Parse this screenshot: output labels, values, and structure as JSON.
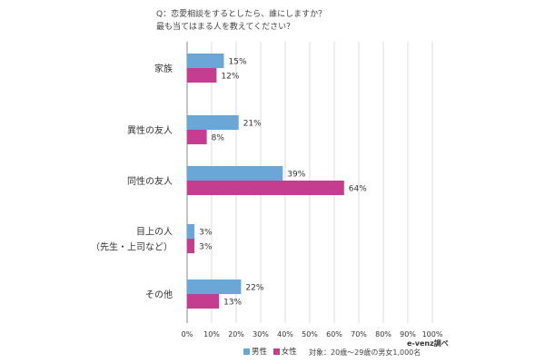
{
  "question": {
    "line1": "Q：恋愛相談をするとしたら、誰にしますか？",
    "line2": "最も当てはまる人を教えてください？"
  },
  "colors": {
    "male": "#6aa7d6",
    "female": "#c53d8e",
    "grid": "#dddddd",
    "axis": "#888888"
  },
  "chart_data": {
    "type": "bar",
    "orientation": "horizontal",
    "categories": [
      "家族",
      "異性の友人",
      "同性の友人",
      "目上の人\n（先生・上司など）",
      "その他"
    ],
    "series": [
      {
        "name": "男性",
        "values": [
          15,
          21,
          39,
          3,
          22
        ]
      },
      {
        "name": "女性",
        "values": [
          12,
          8,
          64,
          3,
          13
        ]
      }
    ],
    "value_labels": {
      "男性": [
        "15%",
        "21%",
        "39%",
        "3%",
        "22%"
      ],
      "女性": [
        "12%",
        "8%",
        "64%",
        "3%",
        "13%"
      ]
    },
    "xlim": [
      0,
      100
    ],
    "xticks": [
      "0%",
      "10%",
      "20%",
      "30%",
      "40%",
      "50%",
      "60%",
      "70%",
      "80%",
      "90%",
      "100%"
    ],
    "grid": true,
    "legend": "bottom"
  },
  "source": "e-venz調べ",
  "note": "対象：20歳〜29歳の男女1,000名"
}
